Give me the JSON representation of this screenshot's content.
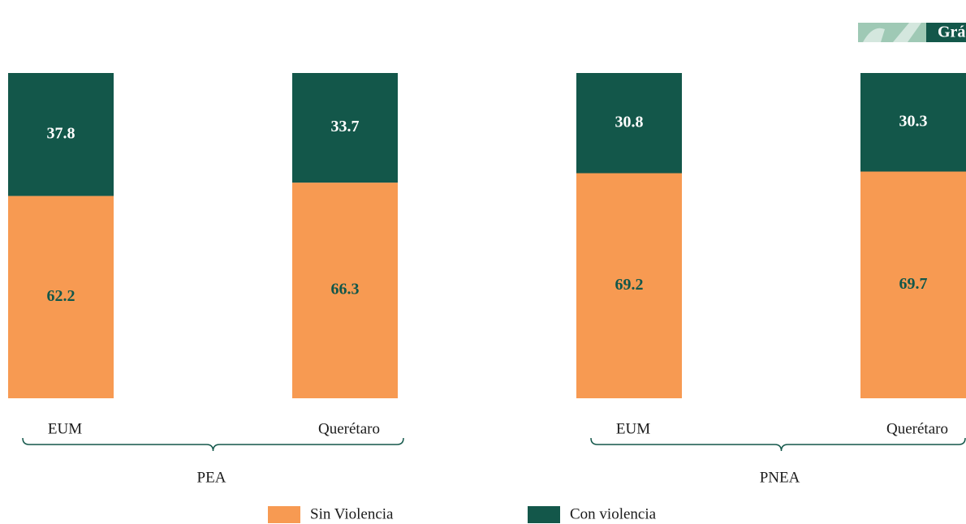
{
  "header_label": "Grá",
  "chart_data": {
    "type": "bar",
    "stacked": true,
    "categories": [
      "EUM",
      "Querétaro",
      "EUM",
      "Querétaro"
    ],
    "groups": [
      "PEA",
      "PNEA"
    ],
    "series": [
      {
        "name": "Sin Violencia",
        "color": "#f79a52",
        "label_color": "#13574a",
        "values": [
          62.2,
          66.3,
          69.2,
          69.7
        ]
      },
      {
        "name": "Con violencia",
        "color": "#13574a",
        "label_color": "#ffffff",
        "values": [
          37.8,
          33.7,
          30.8,
          30.3
        ]
      }
    ]
  }
}
